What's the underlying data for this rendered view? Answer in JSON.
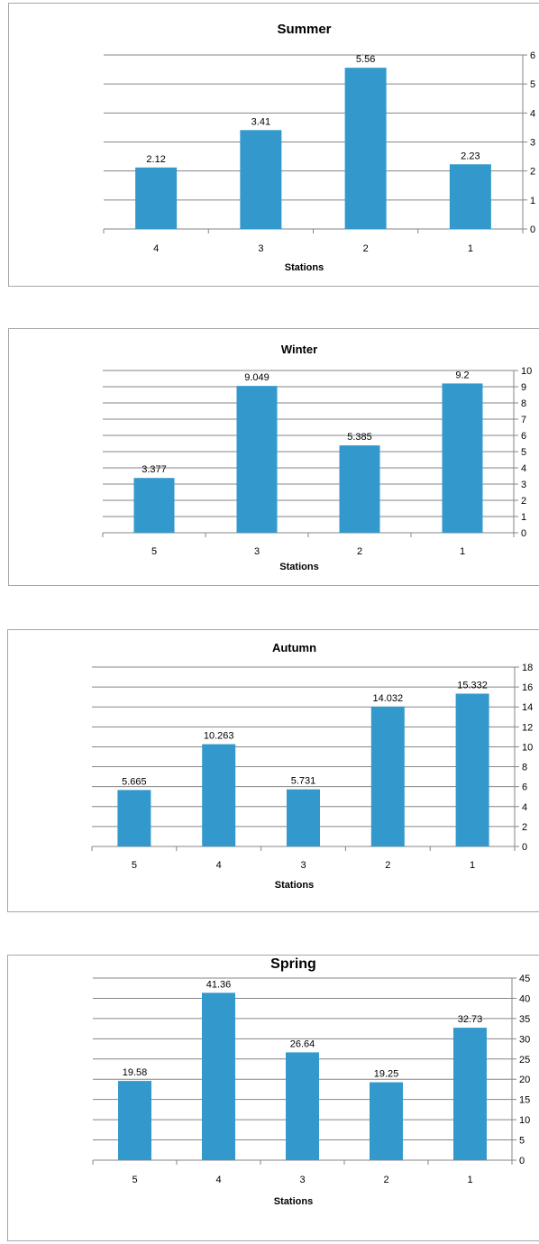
{
  "bar_color": "#3399cc",
  "chart_data": [
    {
      "type": "bar",
      "title": "Summer",
      "xlabel": "Stations",
      "ylabel": "",
      "categories": [
        "4",
        "3",
        "2",
        "1"
      ],
      "values": [
        2.12,
        3.41,
        5.56,
        2.23
      ],
      "value_labels": [
        "2.12",
        "3.41",
        "5.56",
        "2.23"
      ],
      "ylim": [
        0,
        6
      ],
      "yticks": [
        0,
        1,
        2,
        3,
        4,
        5,
        6
      ],
      "y_axis_side": "right",
      "grid": true,
      "legend": "none"
    },
    {
      "type": "bar",
      "title": "Winter",
      "xlabel": "Stations",
      "ylabel": "",
      "categories": [
        "5",
        "3",
        "2",
        "1"
      ],
      "values": [
        3.377,
        9.049,
        5.385,
        9.2
      ],
      "value_labels": [
        "3.377",
        "9.049",
        "5.385",
        "9.2"
      ],
      "ylim": [
        0,
        10
      ],
      "yticks": [
        0,
        1,
        2,
        3,
        4,
        5,
        6,
        7,
        8,
        9,
        10
      ],
      "y_axis_side": "right",
      "grid": true,
      "legend": "none"
    },
    {
      "type": "bar",
      "title": "Autumn",
      "xlabel": "Stations",
      "ylabel": "",
      "categories": [
        "5",
        "4",
        "3",
        "2",
        "1"
      ],
      "values": [
        5.665,
        10.263,
        5.731,
        14.032,
        15.332
      ],
      "value_labels": [
        "5.665",
        "10.263",
        "5.731",
        "14.032",
        "15.332"
      ],
      "ylim": [
        0,
        18
      ],
      "yticks": [
        0,
        2,
        4,
        6,
        8,
        10,
        12,
        14,
        16,
        18
      ],
      "y_axis_side": "right",
      "grid": true,
      "legend": "none"
    },
    {
      "type": "bar",
      "title": "Spring",
      "xlabel": "Stations",
      "ylabel": "",
      "categories": [
        "5",
        "4",
        "3",
        "2",
        "1"
      ],
      "values": [
        19.58,
        41.36,
        26.64,
        19.25,
        32.73
      ],
      "value_labels": [
        "19.58",
        "41.36",
        "26.64",
        "19.25",
        "32.73"
      ],
      "ylim": [
        0,
        45
      ],
      "yticks": [
        0,
        5,
        10,
        15,
        20,
        25,
        30,
        35,
        40,
        45
      ],
      "y_axis_side": "right",
      "grid": true,
      "legend": "none"
    }
  ]
}
